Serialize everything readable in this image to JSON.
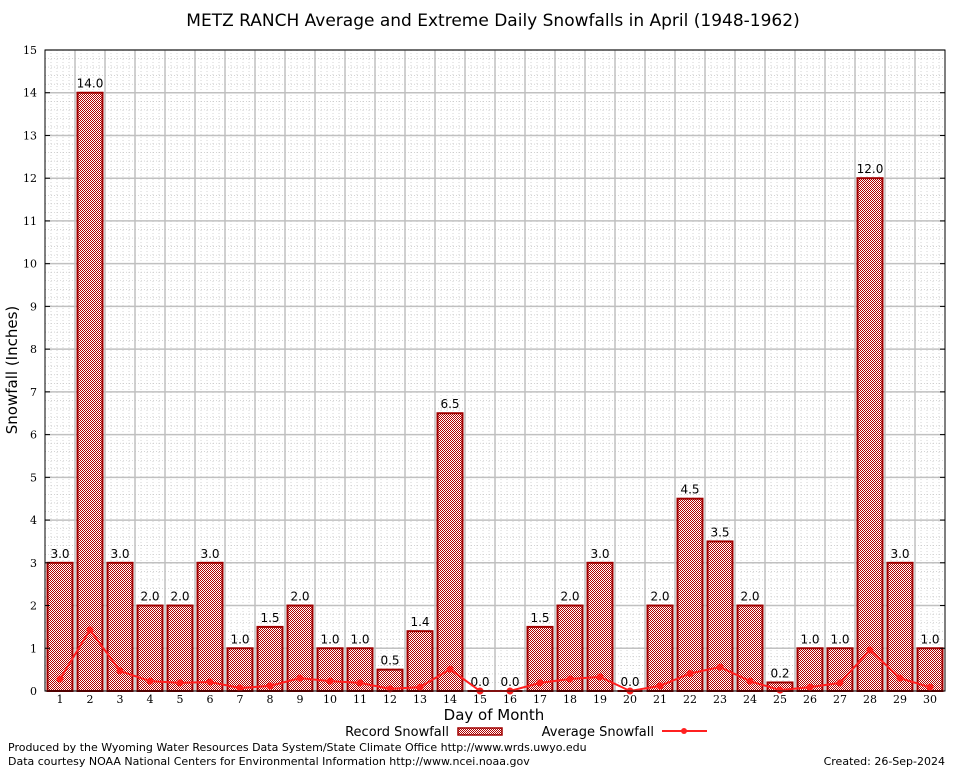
{
  "chart_data": {
    "type": "bar",
    "title": "METZ RANCH Average and Extreme Daily Snowfalls in April (1948-1962)",
    "xlabel": "Day of Month",
    "ylabel": "Snowfall (Inches)",
    "ylim": [
      0,
      15
    ],
    "yticks": [
      "0",
      "1",
      "2",
      "3",
      "4",
      "5",
      "6",
      "7",
      "8",
      "9",
      "10",
      "11",
      "12",
      "13",
      "14",
      "15"
    ],
    "grid": true,
    "legend_placement": "bottom-center",
    "categories": [
      "1",
      "2",
      "3",
      "4",
      "5",
      "6",
      "7",
      "8",
      "9",
      "10",
      "11",
      "12",
      "13",
      "14",
      "15",
      "16",
      "17",
      "18",
      "19",
      "20",
      "21",
      "22",
      "23",
      "24",
      "25",
      "26",
      "27",
      "28",
      "29",
      "30"
    ],
    "series": [
      {
        "name": "Record Snowfall",
        "type": "bar",
        "color": "#a00000",
        "values": [
          3.0,
          14.0,
          3.0,
          2.0,
          2.0,
          3.0,
          1.0,
          1.5,
          2.0,
          1.0,
          1.0,
          0.5,
          1.4,
          6.5,
          0.0,
          0.0,
          1.5,
          2.0,
          3.0,
          0.0,
          2.0,
          4.5,
          3.5,
          2.0,
          0.2,
          1.0,
          1.0,
          12.0,
          3.0,
          1.0
        ],
        "labels": [
          "3.0",
          "14.0",
          "3.0",
          "2.0",
          "2.0",
          "3.0",
          "1.0",
          "1.5",
          "2.0",
          "1.0",
          "1.0",
          "0.5",
          "1.4",
          "6.5",
          "0.0",
          "0.0",
          "1.5",
          "2.0",
          "3.0",
          "0.0",
          "2.0",
          "4.5",
          "3.5",
          "2.0",
          "0.2",
          "1.0",
          "1.0",
          "12.0",
          "3.0",
          "1.0"
        ]
      },
      {
        "name": "Average Snowfall",
        "type": "line",
        "color": "#ff2020",
        "values": [
          0.28,
          1.43,
          0.47,
          0.23,
          0.19,
          0.21,
          0.07,
          0.12,
          0.3,
          0.23,
          0.19,
          0.05,
          0.09,
          0.51,
          0.0,
          0.0,
          0.19,
          0.28,
          0.33,
          0.0,
          0.12,
          0.41,
          0.56,
          0.23,
          0.02,
          0.09,
          0.19,
          0.96,
          0.3,
          0.09
        ]
      }
    ]
  },
  "footer": {
    "produced_by": "Produced by the Wyoming Water Resources Data System/State Climate Office http://www.wrds.uwyo.edu",
    "courtesy": "Data courtesy NOAA National Centers for Environmental Information http://www.ncei.noaa.gov",
    "created": "Created:  26-Sep-2024"
  }
}
